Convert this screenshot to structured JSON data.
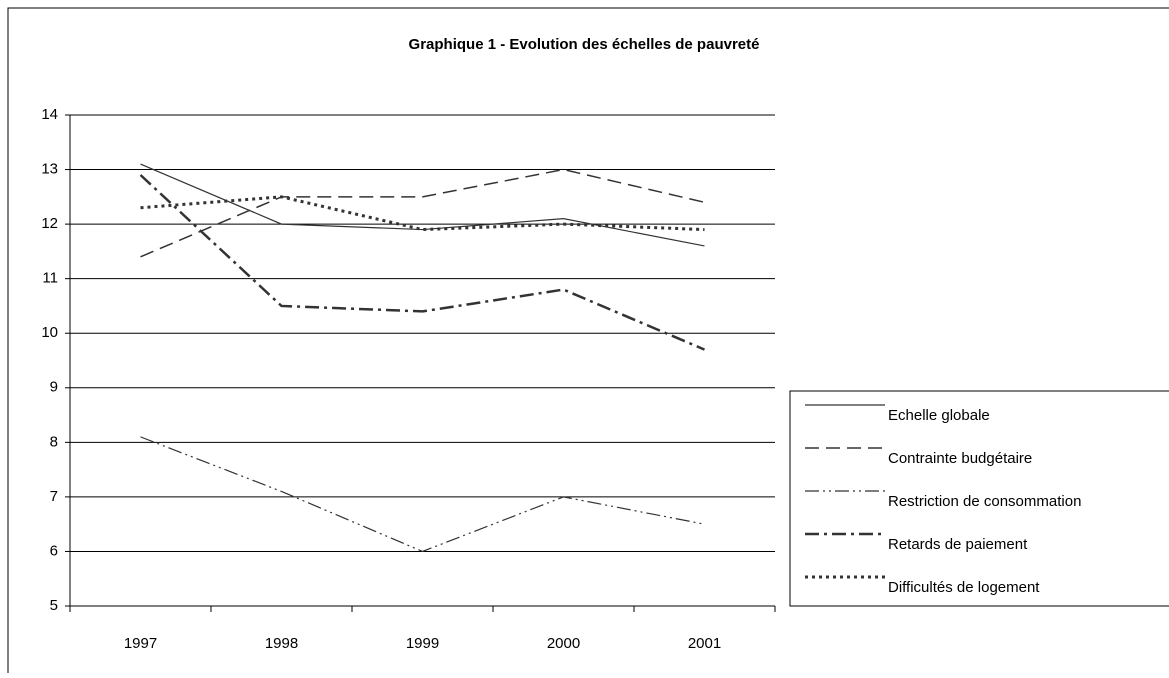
{
  "chart_data": {
    "type": "line",
    "title": "Graphique 1 - Evolution des échelles de pauvreté",
    "categories": [
      "1997",
      "1998",
      "1999",
      "2000",
      "2001"
    ],
    "series": [
      {
        "name": "Echelle globale",
        "color": "#333333",
        "dash": [],
        "width": 1.2,
        "values": [
          13.1,
          12.0,
          11.9,
          12.1,
          11.6
        ]
      },
      {
        "name": "Contrainte budgétaire",
        "color": "#333333",
        "dash": [
          14,
          7
        ],
        "width": 1.5,
        "values": [
          11.4,
          12.5,
          12.5,
          13.0,
          12.4
        ]
      },
      {
        "name": "Restriction de consommation",
        "color": "#333333",
        "dash": [
          14,
          4,
          2,
          4,
          2,
          4
        ],
        "width": 1.2,
        "values": [
          8.1,
          7.1,
          6.0,
          7.0,
          6.5
        ]
      },
      {
        "name": "Retards de paiement",
        "color": "#333333",
        "dash": [
          14,
          5,
          3,
          5
        ],
        "width": 2.5,
        "values": [
          12.9,
          10.5,
          10.4,
          10.8,
          9.7
        ]
      },
      {
        "name": "Difficultés de logement",
        "color": "#333333",
        "dash": [
          3,
          4
        ],
        "width": 3,
        "values": [
          12.3,
          12.5,
          11.9,
          12.0,
          11.9
        ]
      }
    ],
    "ylim": [
      5,
      14
    ],
    "yticks": [
      5,
      6,
      7,
      8,
      9,
      10,
      11,
      12,
      13,
      14
    ],
    "grid": true,
    "legend": "right"
  }
}
